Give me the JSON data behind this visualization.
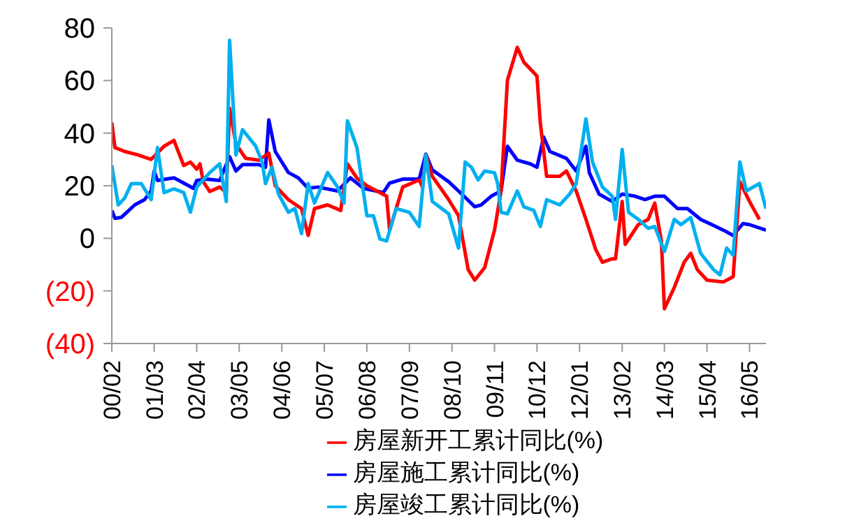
{
  "chart_data": {
    "type": "line",
    "xlim": [
      "2000-02",
      "2016-10"
    ],
    "ylim": [
      -40,
      80
    ],
    "xticks": [
      {
        "value": "2000-02",
        "label": "00/02"
      },
      {
        "value": "2001-03",
        "label": "01/03"
      },
      {
        "value": "2002-04",
        "label": "02/04"
      },
      {
        "value": "2003-05",
        "label": "03/05"
      },
      {
        "value": "2004-06",
        "label": "04/06"
      },
      {
        "value": "2005-07",
        "label": "05/07"
      },
      {
        "value": "2006-08",
        "label": "06/08"
      },
      {
        "value": "2007-09",
        "label": "07/09"
      },
      {
        "value": "2008-10",
        "label": "08/10"
      },
      {
        "value": "2009-11",
        "label": "09/11"
      },
      {
        "value": "2010-12",
        "label": "10/12"
      },
      {
        "value": "2012-01",
        "label": "12/01"
      },
      {
        "value": "2013-02",
        "label": "13/02"
      },
      {
        "value": "2014-03",
        "label": "14/03"
      },
      {
        "value": "2015-04",
        "label": "15/04"
      },
      {
        "value": "2016-05",
        "label": "16/05"
      }
    ],
    "yticks": [
      80,
      60,
      40,
      20,
      0,
      {
        "value": -20,
        "label": "(20)"
      },
      {
        "value": -40,
        "label": "(40)"
      }
    ],
    "legend": "bottom",
    "marker": "none",
    "line_style": "solid",
    "series": [
      {
        "name": "房屋施工累计同比(%)",
        "color": "#0000ff",
        "x": [
          "2000-02",
          "2000-03",
          "2000-05",
          "2000-09",
          "2000-12",
          "2001-02",
          "2001-03",
          "2001-04",
          "2001-09",
          "2001-12",
          "2002-03",
          "2002-04",
          "2002-07",
          "2002-11",
          "2002-12",
          "2003-02",
          "2003-04",
          "2003-06",
          "2003-11",
          "2004-01",
          "2004-02",
          "2004-04",
          "2004-08",
          "2004-11",
          "2005-02",
          "2005-05",
          "2005-11",
          "2006-03",
          "2006-07",
          "2007-01",
          "2007-03",
          "2007-07",
          "2007-12",
          "2008-02",
          "2008-04",
          "2008-09",
          "2009-01",
          "2009-05",
          "2009-07",
          "2009-10",
          "2010-01",
          "2010-03",
          "2010-06",
          "2010-10",
          "2010-12",
          "2011-02",
          "2011-04",
          "2011-09",
          "2011-12",
          "2012-03",
          "2012-04",
          "2012-07",
          "2012-11",
          "2013-02",
          "2013-06",
          "2013-09",
          "2013-12",
          "2014-03",
          "2014-07",
          "2014-10",
          "2015-02",
          "2015-09",
          "2015-12",
          "2016-03",
          "2016-05",
          "2016-10"
        ],
        "values": [
          10.6,
          7.6,
          8,
          12.7,
          14.7,
          18,
          25.6,
          22,
          23,
          21,
          19,
          22,
          22.5,
          22,
          25,
          31,
          25.6,
          28,
          28,
          27,
          45,
          33,
          25,
          23,
          19,
          19.5,
          18,
          23,
          19,
          17.4,
          21,
          22.5,
          22.5,
          32,
          26,
          21.5,
          16.8,
          12,
          12.7,
          16,
          18,
          35,
          29.7,
          28.3,
          27,
          38.5,
          33,
          30.4,
          25.6,
          35,
          25,
          16.8,
          14,
          16.8,
          16,
          14.7,
          16,
          16,
          11.3,
          11.3,
          7.2,
          3.1,
          1.1,
          5.6,
          5.2,
          3.1
        ]
      },
      {
        "name": "房屋新开工累计同比(%)",
        "color": "#ff0000",
        "x": [
          "2000-02",
          "2000-03",
          "2000-06",
          "2000-10",
          "2001-02",
          "2001-06",
          "2001-09",
          "2001-12",
          "2002-02",
          "2002-04",
          "2002-05",
          "2002-06",
          "2002-08",
          "2002-11",
          "2003-01",
          "2003-02",
          "2003-04",
          "2003-07",
          "2003-11",
          "2004-02",
          "2004-04",
          "2004-08",
          "2004-12",
          "2005-02",
          "2005-04",
          "2005-08",
          "2005-12",
          "2006-02",
          "2006-05",
          "2006-08",
          "2006-11",
          "2007-02",
          "2007-03",
          "2007-05",
          "2007-07",
          "2007-12",
          "2008-01",
          "2008-02",
          "2008-04",
          "2008-09",
          "2008-12",
          "2009-03",
          "2009-05",
          "2009-08",
          "2009-11",
          "2010-01",
          "2010-03",
          "2010-06",
          "2010-08",
          "2010-12",
          "2011-01",
          "2011-03",
          "2011-07",
          "2011-09",
          "2011-12",
          "2012-03",
          "2012-06",
          "2012-08",
          "2012-11",
          "2012-12",
          "2013-02",
          "2013-03",
          "2013-07",
          "2013-10",
          "2013-12",
          "2014-02",
          "2014-03",
          "2014-06",
          "2014-09",
          "2014-11",
          "2015-01",
          "2015-04",
          "2015-09",
          "2015-12",
          "2016-02",
          "2016-05",
          "2016-08"
        ],
        "values": [
          44,
          34.5,
          33,
          31.7,
          30,
          35,
          37.2,
          27.7,
          29,
          26.3,
          28.3,
          21.5,
          17.8,
          19.5,
          17.4,
          49.5,
          35.8,
          30.4,
          29.7,
          32.4,
          20,
          14.7,
          11.3,
          1.1,
          11.3,
          12.7,
          10.6,
          28.3,
          22.9,
          20,
          18,
          16,
          3.1,
          11.3,
          19.5,
          22.2,
          19.5,
          31.7,
          23.6,
          14.7,
          8.6,
          -11.9,
          -15.9,
          -11.2,
          3.1,
          18,
          60,
          72.6,
          67,
          61.7,
          44,
          23.6,
          23.6,
          25.6,
          18,
          7.2,
          -4.4,
          -9.1,
          -7.8,
          -7.8,
          14,
          -2.3,
          5.2,
          7.2,
          13.4,
          -1,
          -26.8,
          -18.7,
          -9.1,
          -5.7,
          -11.9,
          -15.9,
          -16.6,
          -14.6,
          21.5,
          14,
          7.2
        ]
      },
      {
        "name": "房屋竣工累计同比(%)",
        "color": "#00b0f0",
        "x": [
          "2000-02",
          "2000-04",
          "2000-06",
          "2000-08",
          "2000-11",
          "2001-02",
          "2001-04",
          "2001-06",
          "2001-09",
          "2001-12",
          "2002-02",
          "2002-04",
          "2002-08",
          "2002-11",
          "2003-01",
          "2003-02",
          "2003-04",
          "2003-06",
          "2003-10",
          "2003-12",
          "2004-01",
          "2004-03",
          "2004-05",
          "2004-08",
          "2004-10",
          "2004-12",
          "2005-02",
          "2005-04",
          "2005-08",
          "2005-11",
          "2006-01",
          "2006-02",
          "2006-05",
          "2006-08",
          "2006-10",
          "2006-12",
          "2007-02",
          "2007-05",
          "2007-09",
          "2007-12",
          "2008-02",
          "2008-04",
          "2008-09",
          "2008-12",
          "2009-02",
          "2009-04",
          "2009-06",
          "2009-08",
          "2009-11",
          "2009-12",
          "2010-01",
          "2010-03",
          "2010-06",
          "2010-08",
          "2010-11",
          "2011-01",
          "2011-03",
          "2011-07",
          "2011-10",
          "2011-12",
          "2012-03",
          "2012-05",
          "2012-08",
          "2012-11",
          "2012-12",
          "2013-02",
          "2013-04",
          "2013-07",
          "2013-10",
          "2013-12",
          "2014-03",
          "2014-06",
          "2014-08",
          "2014-11",
          "2015-02",
          "2015-06",
          "2015-08",
          "2015-10",
          "2015-12",
          "2016-02",
          "2016-04",
          "2016-08",
          "2016-10"
        ],
        "values": [
          27.7,
          12.7,
          15.4,
          20.8,
          20.8,
          14.7,
          34.5,
          17.4,
          18.8,
          17.4,
          9.9,
          19.5,
          25,
          28.3,
          14,
          75.3,
          31.7,
          41.3,
          35.1,
          29,
          20.8,
          27,
          16.8,
          9.9,
          11.3,
          1.8,
          20.8,
          13.4,
          25,
          19.5,
          13.4,
          44.7,
          34.5,
          8.6,
          8.6,
          -0.3,
          -1,
          11.3,
          9.9,
          4.5,
          31.7,
          14,
          9.3,
          -3.7,
          29,
          27,
          22.2,
          25.6,
          24.9,
          20.8,
          9.9,
          9.3,
          18,
          12,
          10.6,
          4.5,
          14.7,
          12.7,
          16.8,
          20.8,
          45.4,
          29,
          19.5,
          16,
          7.2,
          33.8,
          9.9,
          7.2,
          3.8,
          4.5,
          -5,
          7.2,
          5.2,
          7.9,
          -5.7,
          -11.9,
          -13.9,
          -3.7,
          -6.4,
          29,
          18,
          20.8,
          11.3
        ]
      }
    ]
  }
}
